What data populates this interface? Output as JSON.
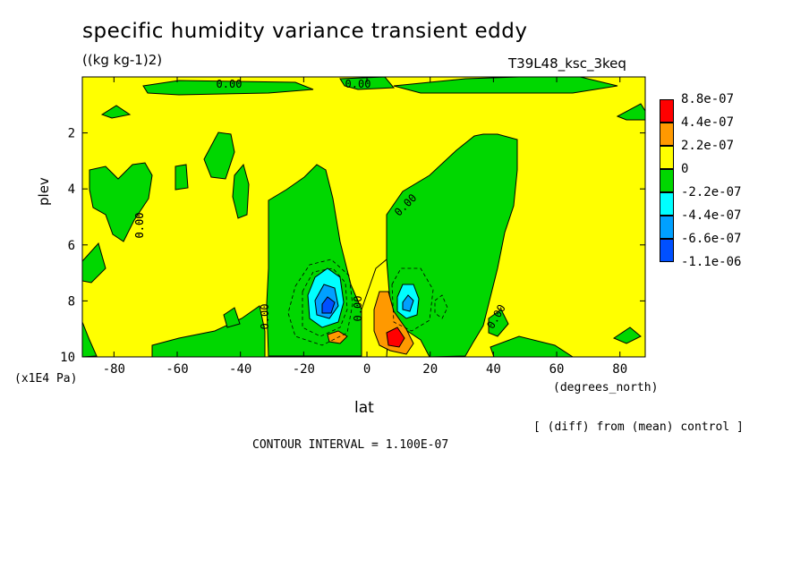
{
  "header": {
    "title": "specific humidity variance transient eddy",
    "units": "((kg kg-1)2)",
    "run_id": "T39L48_ksc_3keq"
  },
  "footer": {
    "y_units": "(x1E4 Pa)",
    "x_units": "(degrees_north)",
    "diff_note": "[ (diff) from (mean) control ]",
    "contour_interval": "CONTOUR INTERVAL = 1.100E-07"
  },
  "chart_data": {
    "type": "heatmap",
    "title": "specific humidity variance transient eddy",
    "xlabel": "lat",
    "ylabel": "plev",
    "xlim": [
      -90,
      88
    ],
    "ylim": [
      10,
      0
    ],
    "x_ticks": [
      -80,
      -60,
      -40,
      -20,
      0,
      20,
      40,
      60,
      80
    ],
    "y_ticks": [
      2,
      4,
      6,
      8,
      10
    ],
    "contour_labels": [
      "0.00",
      "0.00",
      "0.00",
      "0.00",
      "0.00",
      "0.00",
      "0.00",
      "0.00"
    ],
    "colorbar": {
      "labels": [
        "8.8e-07",
        "4.4e-07",
        "2.2e-07",
        "0",
        "-2.2e-07",
        "-4.4e-07",
        "-6.6e-07",
        "-1.1e-06"
      ],
      "colors": [
        "#ff0000",
        "#ff9900",
        "#ffff00",
        "#00d700",
        "#00ffff",
        "#00a0ff",
        "#0050ff"
      ]
    },
    "fill_colors": {
      "zero": "#ffff00",
      "neg1": "#00d700",
      "neg2": "#00ffff",
      "neg3": "#00a0ff",
      "neg4": "#0050ff",
      "pos1": "#ff9900",
      "pos2": "#ff0000"
    }
  }
}
